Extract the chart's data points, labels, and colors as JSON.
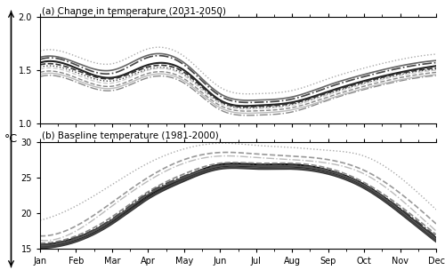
{
  "title_a": "(a) Change in temperature (2031-2050)",
  "title_b": "(b) Baseline temperature (1981-2000)",
  "ylabel": "°C",
  "months": [
    "Jan",
    "Feb",
    "Mar",
    "Apr",
    "May",
    "Jun",
    "Jul",
    "Aug",
    "Sep",
    "Oct",
    "Nov",
    "Dec"
  ],
  "ylim_a": [
    1.0,
    2.0
  ],
  "ylim_b": [
    15.0,
    30.0
  ],
  "yticks_a": [
    1.0,
    1.5,
    2.0
  ],
  "yticks_b": [
    15,
    20,
    25,
    30
  ],
  "stations_a": [
    [
      1.57,
      1.52,
      1.43,
      1.55,
      1.5,
      1.22,
      1.17,
      1.2,
      1.3,
      1.4,
      1.48,
      1.54
    ],
    [
      1.55,
      1.5,
      1.42,
      1.53,
      1.48,
      1.21,
      1.16,
      1.19,
      1.29,
      1.39,
      1.47,
      1.52
    ],
    [
      1.6,
      1.55,
      1.47,
      1.62,
      1.55,
      1.26,
      1.2,
      1.23,
      1.34,
      1.44,
      1.52,
      1.57
    ],
    [
      1.53,
      1.48,
      1.4,
      1.51,
      1.46,
      1.2,
      1.15,
      1.18,
      1.28,
      1.38,
      1.46,
      1.51
    ],
    [
      1.62,
      1.57,
      1.5,
      1.64,
      1.57,
      1.28,
      1.22,
      1.25,
      1.36,
      1.46,
      1.54,
      1.59
    ],
    [
      1.48,
      1.43,
      1.35,
      1.47,
      1.42,
      1.17,
      1.12,
      1.15,
      1.25,
      1.35,
      1.43,
      1.48
    ],
    [
      1.44,
      1.39,
      1.31,
      1.43,
      1.38,
      1.13,
      1.08,
      1.11,
      1.22,
      1.32,
      1.4,
      1.45
    ],
    [
      1.68,
      1.63,
      1.56,
      1.7,
      1.63,
      1.34,
      1.28,
      1.31,
      1.42,
      1.52,
      1.6,
      1.65
    ],
    [
      1.46,
      1.41,
      1.33,
      1.45,
      1.4,
      1.15,
      1.1,
      1.13,
      1.23,
      1.33,
      1.41,
      1.46
    ],
    [
      1.51,
      1.46,
      1.38,
      1.5,
      1.45,
      1.19,
      1.14,
      1.17,
      1.27,
      1.37,
      1.45,
      1.5
    ]
  ],
  "stations_b": [
    [
      15.5,
      16.5,
      19.0,
      22.5,
      25.0,
      26.8,
      26.8,
      26.8,
      26.0,
      24.0,
      20.5,
      16.5
    ],
    [
      15.3,
      16.2,
      18.7,
      22.2,
      24.8,
      26.5,
      26.5,
      26.5,
      25.8,
      23.8,
      20.2,
      16.2
    ],
    [
      15.8,
      16.8,
      19.5,
      23.0,
      25.5,
      27.0,
      27.0,
      27.0,
      26.3,
      24.3,
      21.0,
      17.0
    ],
    [
      15.1,
      16.0,
      18.5,
      22.0,
      24.5,
      26.2,
      26.2,
      26.2,
      25.5,
      23.5,
      20.0,
      16.0
    ],
    [
      15.6,
      16.6,
      19.2,
      22.8,
      25.2,
      26.7,
      26.7,
      26.7,
      26.0,
      24.0,
      20.7,
      16.7
    ],
    [
      16.8,
      18.2,
      21.5,
      25.0,
      27.5,
      28.5,
      28.3,
      28.0,
      27.5,
      26.0,
      22.8,
      18.5
    ],
    [
      19.0,
      21.0,
      24.0,
      27.0,
      29.0,
      29.8,
      29.5,
      29.2,
      28.8,
      28.0,
      25.0,
      20.5
    ],
    [
      15.2,
      16.1,
      18.6,
      22.1,
      24.7,
      26.3,
      26.3,
      26.3,
      25.6,
      23.6,
      20.1,
      16.1
    ],
    [
      16.2,
      17.5,
      21.0,
      24.5,
      27.0,
      28.0,
      27.8,
      27.5,
      27.0,
      25.5,
      22.0,
      17.5
    ],
    [
      15.4,
      16.4,
      19.0,
      22.6,
      25.0,
      26.6,
      26.6,
      26.6,
      25.9,
      23.9,
      20.4,
      16.4
    ]
  ],
  "line_styles_a": [
    "solid",
    "dashed",
    "dashdot",
    "dotted",
    "solid",
    "dashed",
    "dashdot",
    "dotted",
    "solid",
    "dashed"
  ],
  "line_styles_b": [
    "solid",
    "solid",
    "dashed",
    "solid",
    "dashdot",
    "dashed",
    "dotted",
    "solid",
    "dashdot",
    "solid"
  ],
  "line_colors_a": [
    "#222222",
    "#333333",
    "#444444",
    "#444444",
    "#666666",
    "#888888",
    "#888888",
    "#aaaaaa",
    "#bbbbbb",
    "#cccccc"
  ],
  "line_colors_b": [
    "#111111",
    "#222222",
    "#888888",
    "#333333",
    "#444444",
    "#999999",
    "#aaaaaa",
    "#444444",
    "#bbbbbb",
    "#555555"
  ],
  "line_widths_a": [
    1.5,
    1.2,
    1.2,
    1.0,
    1.2,
    1.0,
    1.0,
    1.0,
    1.0,
    1.0
  ],
  "line_widths_b": [
    1.8,
    1.5,
    1.2,
    1.5,
    1.2,
    1.2,
    1.0,
    1.2,
    1.0,
    1.2
  ]
}
